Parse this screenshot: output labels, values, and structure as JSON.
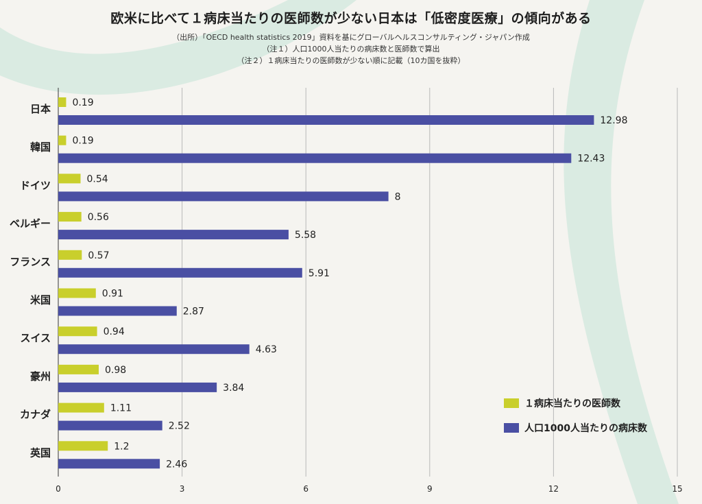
{
  "header": {
    "title": "欧米に比べて１病床当たりの医師数が少ない日本は「低密度医療」の傾向がある",
    "source": "（出所）「OECD health statistics 2019」資料を基にグローバルヘルスコンサルティング・ジャパン作成",
    "note1": "（注１）人口1000人当たりの病床数と医師数で算出",
    "note2": "（注２）１病床当たりの医師数が少ない順に記載（10カ国を抜粋）"
  },
  "colors": {
    "doctors": "#c9cf2c",
    "beds": "#4a4fa3",
    "grid": "#b8b8b8",
    "swoosh": "#cfe6dc"
  },
  "chart_data": {
    "type": "bar",
    "orientation": "horizontal",
    "categories": [
      "日本",
      "韓国",
      "ドイツ",
      "ベルギー",
      "フランス",
      "米国",
      "スイス",
      "豪州",
      "カナダ",
      "英国"
    ],
    "series": [
      {
        "name": "１病床当たりの医師数",
        "values": [
          0.19,
          0.19,
          0.54,
          0.56,
          0.57,
          0.91,
          0.94,
          0.98,
          1.11,
          1.2
        ]
      },
      {
        "name": "人口1000人当たりの病床数",
        "values": [
          12.98,
          12.43,
          8,
          5.58,
          5.91,
          2.87,
          4.63,
          3.84,
          2.52,
          2.46
        ]
      }
    ],
    "value_labels": [
      [
        "0.19",
        "0.19",
        "0.54",
        "0.56",
        "0.57",
        "0.91",
        "0.94",
        "0.98",
        "1.11",
        "1.2"
      ],
      [
        "12.98",
        "12.43",
        "8",
        "5.58",
        "5.91",
        "2.87",
        "4.63",
        "3.84",
        "2.52",
        "2.46"
      ]
    ],
    "xlim": [
      0,
      15
    ],
    "xticks": [
      "0",
      "3",
      "6",
      "9",
      "12",
      "15"
    ],
    "grid": true,
    "legend": "bottom-right"
  }
}
